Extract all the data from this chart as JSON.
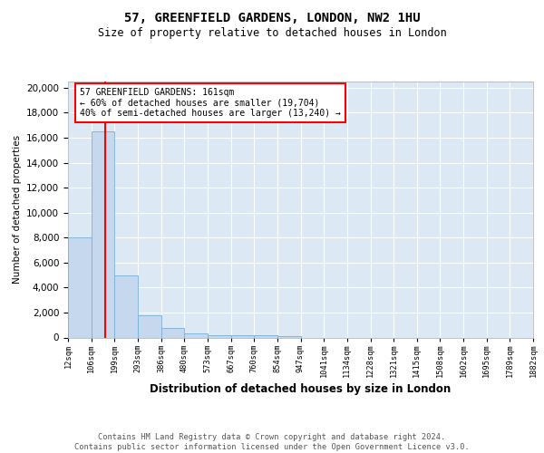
{
  "title_line1": "57, GREENFIELD GARDENS, LONDON, NW2 1HU",
  "title_line2": "Size of property relative to detached houses in London",
  "xlabel": "Distribution of detached houses by size in London",
  "ylabel": "Number of detached properties",
  "bin_edges": [
    12,
    106,
    199,
    293,
    386,
    480,
    573,
    667,
    760,
    854,
    947,
    1041,
    1134,
    1228,
    1321,
    1415,
    1508,
    1602,
    1695,
    1789,
    1882
  ],
  "bar_heights": [
    8000,
    16500,
    5000,
    1800,
    750,
    350,
    200,
    150,
    150,
    100,
    0,
    0,
    0,
    0,
    0,
    0,
    0,
    0,
    0,
    0
  ],
  "bar_color": "#c5d8ed",
  "bar_edgecolor": "#7baed4",
  "red_line_x": 161,
  "ylim": [
    0,
    20500
  ],
  "annotation_box_text": "57 GREENFIELD GARDENS: 161sqm\n← 60% of detached houses are smaller (19,704)\n40% of semi-detached houses are larger (13,240) →",
  "footer_text": "Contains HM Land Registry data © Crown copyright and database right 2024.\nContains public sector information licensed under the Open Government Licence v3.0.",
  "tick_labels": [
    "12sqm",
    "106sqm",
    "199sqm",
    "293sqm",
    "386sqm",
    "480sqm",
    "573sqm",
    "667sqm",
    "760sqm",
    "854sqm",
    "947sqm",
    "1041sqm",
    "1134sqm",
    "1228sqm",
    "1321sqm",
    "1415sqm",
    "1508sqm",
    "1602sqm",
    "1695sqm",
    "1789sqm",
    "1882sqm"
  ],
  "background_color": "#dce9f5",
  "yticks": [
    0,
    2000,
    4000,
    6000,
    8000,
    10000,
    12000,
    14000,
    16000,
    18000,
    20000
  ],
  "title_fontsize": 10,
  "subtitle_fontsize": 8.5,
  "xlabel_fontsize": 8.5,
  "ylabel_fontsize": 7.5,
  "xtick_fontsize": 6.2,
  "ytick_fontsize": 7.5,
  "annotation_fontsize": 7.0,
  "footer_fontsize": 6.2
}
